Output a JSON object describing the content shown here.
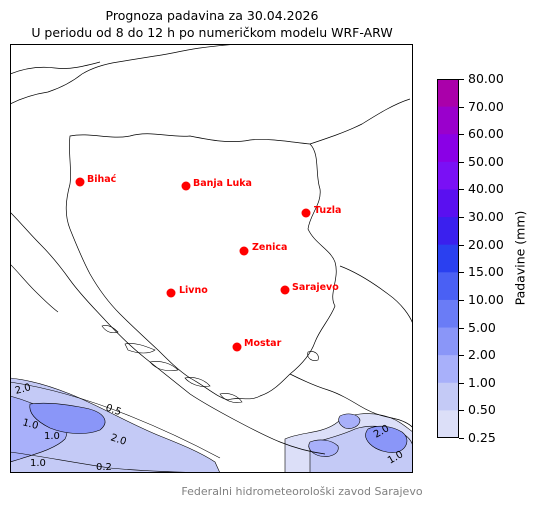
{
  "title_line1": "Prognoza padavina za 30.04.2026",
  "title_line2": "U periodu od 8 do 12 h po numeričkom modelu WRF-ARW",
  "colorbar": {
    "label": "Padavine (mm)",
    "ticks": [
      "80.00",
      "70.00",
      "60.00",
      "50.00",
      "40.00",
      "30.00",
      "20.00",
      "15.00",
      "10.00",
      "5.00",
      "2.00",
      "1.00",
      "0.50",
      "0.25"
    ],
    "colors": [
      "#aa00aa",
      "#9a00cc",
      "#8a00e6",
      "#7a10f5",
      "#5a10f0",
      "#3a20ee",
      "#2a40f0",
      "#4a60f4",
      "#6a7cf6",
      "#8a96f8",
      "#a8b0fa",
      "#c4caf6",
      "#dcdff8",
      "#eef0fc"
    ]
  },
  "cities": [
    {
      "name": "Bihać",
      "marker": "city-marker-bihac"
    },
    {
      "name": "Banja Luka",
      "marker": "city-marker-banja-luka"
    },
    {
      "name": "Tuzla",
      "marker": "city-marker-tuzla"
    },
    {
      "name": "Zenica",
      "marker": "city-marker-zenica"
    },
    {
      "name": "Livno",
      "marker": "city-marker-livno"
    },
    {
      "name": "Sarajevo",
      "marker": "city-marker-sarajevo"
    },
    {
      "name": "Mostar",
      "marker": "city-marker-mostar"
    }
  ],
  "contour_labels": [
    "2.0",
    "0.5",
    "1.0",
    "1.0",
    "2.0",
    "1.0",
    "0.2",
    "2.0",
    "1.0"
  ],
  "footer": "Federalni hidrometeorološki zavod Sarajevo",
  "accent_colors": {
    "city": "#ff0000",
    "frame": "#000000"
  }
}
